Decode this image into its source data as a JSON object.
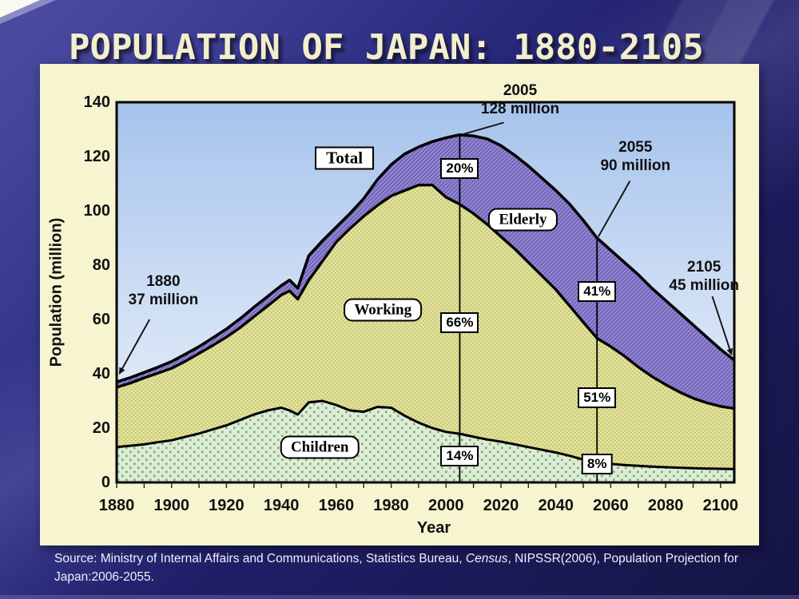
{
  "slide": {
    "title": "POPULATION OF JAPAN: 1880-2105"
  },
  "source": {
    "part1": "Source: Ministry of Internal Affairs and Communications, Statistics Bureau, ",
    "census": "Census",
    "part2": ", NIPSSR(2006), Population Projection for Japan:2006-2055."
  },
  "colors": {
    "panel_bg": "#f7f4d0",
    "title_color": "#f3eecd",
    "plot_bg_top": "#a6c3ec",
    "plot_bg_mid": "#cdddf4",
    "plot_bg_bottom": "#eff4fb",
    "children_fill": "#dcedd6",
    "children_dot": "#85a877",
    "working_fill": "#e2e29c",
    "working_dot": "#b9b963",
    "elderly_fill": "#9589d3",
    "elderly_hatch": "#6c60b5",
    "line_color": "#000000"
  },
  "chart_data": {
    "type": "area",
    "stacked": true,
    "xlabel": "Year",
    "ylabel": "Population (million)",
    "xlim": [
      1880,
      2105
    ],
    "ylim": [
      0,
      140
    ],
    "x_ticks": [
      1880,
      1900,
      1920,
      1940,
      1960,
      1980,
      2000,
      2020,
      2040,
      2060,
      2080,
      2100
    ],
    "y_ticks": [
      0,
      20,
      40,
      60,
      80,
      100,
      120,
      140
    ],
    "grid": false,
    "years": [
      1880,
      1885,
      1890,
      1895,
      1900,
      1905,
      1910,
      1915,
      1920,
      1925,
      1930,
      1935,
      1940,
      1943,
      1946,
      1950,
      1955,
      1960,
      1965,
      1970,
      1975,
      1980,
      1985,
      1990,
      1995,
      2000,
      2005,
      2010,
      2015,
      2020,
      2025,
      2030,
      2035,
      2040,
      2045,
      2050,
      2055,
      2060,
      2065,
      2070,
      2075,
      2080,
      2085,
      2090,
      2095,
      2100,
      2105
    ],
    "series": [
      {
        "name": "Children",
        "cumulative": [
          13,
          13.5,
          14,
          14.8,
          15.5,
          16.8,
          18,
          19.5,
          21,
          23,
          25,
          26.5,
          27.5,
          26.5,
          25,
          29.5,
          30,
          28.5,
          26.5,
          26,
          27.8,
          27.5,
          24.5,
          22,
          20,
          18.6,
          17.9,
          16.8,
          15.8,
          15,
          14,
          13,
          12,
          11,
          9.8,
          8.4,
          7.2,
          6.8,
          6.4,
          6.1,
          5.8,
          5.6,
          5.4,
          5.2,
          5.1,
          5,
          4.9
        ]
      },
      {
        "name": "Children+Working",
        "cumulative": [
          35,
          36.6,
          38.5,
          40.2,
          42,
          44.6,
          47.5,
          50.4,
          53.5,
          57,
          61,
          65,
          69,
          70.5,
          67.5,
          74.5,
          81.5,
          88.5,
          93.5,
          98,
          102,
          105.5,
          107.5,
          109.5,
          109.5,
          105,
          102.4,
          99,
          95,
          90.5,
          86,
          81,
          76,
          71,
          65,
          59,
          53.1,
          50,
          46.5,
          42.5,
          39,
          36,
          33.3,
          31,
          29.3,
          28,
          27.2
        ]
      },
      {
        "name": "Total",
        "cumulative": [
          37,
          38.6,
          40.5,
          42.4,
          44.5,
          47.2,
          50,
          53.2,
          56.5,
          60.3,
          64.5,
          68.5,
          72.5,
          74.5,
          71.5,
          83.5,
          89,
          94,
          99,
          104.5,
          111.5,
          117,
          121,
          123.5,
          125.5,
          126.9,
          128,
          127.6,
          126.5,
          124,
          120.5,
          116.5,
          112,
          107.5,
          102.5,
          96.5,
          90,
          85.5,
          81,
          76.5,
          71.5,
          67,
          62.5,
          58,
          53.5,
          49,
          45
        ]
      }
    ],
    "ref_lines": [
      {
        "year": 2005,
        "top_value": 128
      },
      {
        "year": 2055,
        "top_value": 90
      }
    ],
    "percent_labels": [
      {
        "text": "20%",
        "year": 2005,
        "value": 115.6
      },
      {
        "text": "66%",
        "year": 2005,
        "value": 58.8
      },
      {
        "text": "14%",
        "year": 2005,
        "value": 9.7
      },
      {
        "text": "41%",
        "year": 2055,
        "value": 70.3
      },
      {
        "text": "51%",
        "year": 2055,
        "value": 31.2
      },
      {
        "text": "8%",
        "year": 2055,
        "value": 6.8
      }
    ],
    "area_labels": [
      {
        "text": "Total",
        "year": 1963,
        "value": 119.5,
        "shape": "square"
      },
      {
        "text": "Elderly",
        "year": 2028,
        "value": 96.8,
        "shape": "rounded"
      },
      {
        "text": "Working",
        "year": 1977,
        "value": 63.5,
        "shape": "rounded"
      },
      {
        "text": "Children",
        "year": 1954,
        "value": 12.9,
        "shape": "rounded"
      }
    ],
    "annotations": [
      {
        "id": "1880",
        "lines": [
          "1880",
          "37 million"
        ],
        "text_at": {
          "year": 1897,
          "value": 70.5
        },
        "arrow_from": {
          "year": 1892,
          "value": 60
        },
        "arrow_to": {
          "year": 1881,
          "value": 40
        },
        "arrowhead": true
      },
      {
        "id": "2005",
        "lines": [
          "2005",
          "128 million"
        ],
        "text_at": {
          "year": 2027,
          "value": 141
        },
        "arrow_from": {
          "year": 2021,
          "value": 132.5
        },
        "arrow_to": {
          "year": 2006.5,
          "value": 128.3
        },
        "arrowhead": false
      },
      {
        "id": "2055",
        "lines": [
          "2055",
          "90 million"
        ],
        "text_at": {
          "year": 2069,
          "value": 120
        },
        "arrow_from": {
          "year": 2067,
          "value": 111
        },
        "arrow_to": {
          "year": 2055.5,
          "value": 90.5
        },
        "arrowhead": false
      },
      {
        "id": "2105",
        "lines": [
          "2105",
          "45 million"
        ],
        "text_at": {
          "year": 2094,
          "value": 76
        },
        "arrow_from": {
          "year": 2097,
          "value": 68.5
        },
        "arrow_to": {
          "year": 2104,
          "value": 47
        },
        "arrowhead": true
      }
    ]
  }
}
